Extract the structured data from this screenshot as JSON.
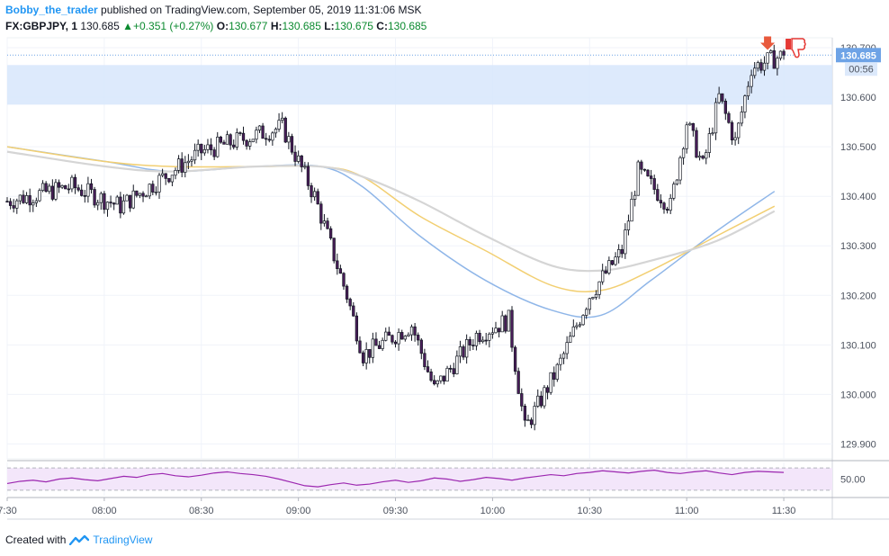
{
  "header": {
    "author": "Bobby_the_trader",
    "published_text": " published on TradingView.com, September 05, 2019 11:31:06 MSK",
    "symbol": "FX:GBPJPY, 1",
    "last_price": "130.685",
    "change": "+0.351 (+0.27%)",
    "open_label": "O:",
    "open": "130.677",
    "high_label": "H:",
    "high": "130.685",
    "low_label": "L:",
    "low": "130.675",
    "close_label": "C:",
    "close": "130.685"
  },
  "footer": {
    "created_with": "Created with",
    "brand": "TradingView"
  },
  "price_axis": {
    "last_price_label": "130.685",
    "countdown_label": "00:56",
    "top_partial_label": "130.700"
  },
  "colors": {
    "candle_body": "#4a1d5a",
    "ma_fast": "#8fb6e8",
    "ma_mid": "#f2cf72",
    "ma_slow": "#d5d5d5",
    "zone_fill": "#d7e6fb",
    "rsi_line": "#9c27b0",
    "rsi_band": "#f3e6fa",
    "marker_arrow": "#e8593c",
    "marker_thumb": "#e53935",
    "last_price_badge": "#6ea3e6",
    "brand_blue": "#2196f3"
  },
  "icons": {
    "sell_marker": "down-arrow-icon",
    "thumbs_down": "thumbs-down-icon",
    "brand_logo": "tradingview-logo-icon"
  },
  "chart_data": [
    {
      "type": "candlestick",
      "title": "",
      "x_labels": [
        "7:30",
        "08:00",
        "08:30",
        "09:00",
        "09:30",
        "10:00",
        "10:30",
        "11:00",
        "11:30"
      ],
      "x_range": [
        "07:30",
        "11:45"
      ],
      "y_ticks": [
        "129.900",
        "130.000",
        "130.100",
        "130.200",
        "130.300",
        "130.400",
        "130.500",
        "130.600",
        "130.700"
      ],
      "ylim": [
        129.87,
        130.72
      ],
      "zone": {
        "from": 130.585,
        "to": 130.665
      },
      "last_price": 130.685,
      "key_points": [
        {
          "t": "07:30",
          "price": 130.39
        },
        {
          "t": "07:50",
          "price": 130.42
        },
        {
          "t": "08:05",
          "price": 130.38
        },
        {
          "t": "08:30",
          "price": 130.49
        },
        {
          "t": "08:55",
          "price": 130.54
        },
        {
          "t": "09:05",
          "price": 130.4
        },
        {
          "t": "09:15",
          "price": 130.2
        },
        {
          "t": "09:20",
          "price": 130.08
        },
        {
          "t": "09:35",
          "price": 130.14
        },
        {
          "t": "09:42",
          "price": 130.01
        },
        {
          "t": "09:55",
          "price": 130.12
        },
        {
          "t": "10:05",
          "price": 130.15
        },
        {
          "t": "10:10",
          "price": 129.93
        },
        {
          "t": "10:20",
          "price": 130.05
        },
        {
          "t": "10:30",
          "price": 130.2
        },
        {
          "t": "10:40",
          "price": 130.29
        },
        {
          "t": "10:45",
          "price": 130.45
        },
        {
          "t": "10:55",
          "price": 130.38
        },
        {
          "t": "11:00",
          "price": 130.55
        },
        {
          "t": "11:05",
          "price": 130.46
        },
        {
          "t": "11:10",
          "price": 130.6
        },
        {
          "t": "11:15",
          "price": 130.51
        },
        {
          "t": "11:20",
          "price": 130.66
        },
        {
          "t": "11:30",
          "price": 130.685
        }
      ],
      "moving_averages": [
        {
          "color_key": "ma_fast",
          "points": [
            [
              0,
              130.5
            ],
            [
              0.12,
              130.47
            ],
            [
              0.2,
              130.45
            ],
            [
              0.3,
              130.46
            ],
            [
              0.38,
              130.46
            ],
            [
              0.43,
              130.42
            ],
            [
              0.5,
              130.32
            ],
            [
              0.58,
              130.23
            ],
            [
              0.66,
              130.17
            ],
            [
              0.72,
              130.16
            ],
            [
              0.78,
              130.23
            ],
            [
              0.86,
              130.33
            ],
            [
              0.93,
              130.41
            ]
          ]
        },
        {
          "color_key": "ma_mid",
          "points": [
            [
              0,
              130.5
            ],
            [
              0.12,
              130.47
            ],
            [
              0.2,
              130.46
            ],
            [
              0.3,
              130.46
            ],
            [
              0.38,
              130.46
            ],
            [
              0.43,
              130.44
            ],
            [
              0.5,
              130.36
            ],
            [
              0.58,
              130.29
            ],
            [
              0.66,
              130.22
            ],
            [
              0.72,
              130.21
            ],
            [
              0.78,
              130.25
            ],
            [
              0.86,
              130.32
            ],
            [
              0.93,
              130.38
            ]
          ]
        },
        {
          "color_key": "ma_slow",
          "points": [
            [
              0,
              130.49
            ],
            [
              0.12,
              130.46
            ],
            [
              0.2,
              130.45
            ],
            [
              0.3,
              130.46
            ],
            [
              0.38,
              130.46
            ],
            [
              0.43,
              130.44
            ],
            [
              0.5,
              130.39
            ],
            [
              0.58,
              130.32
            ],
            [
              0.66,
              130.26
            ],
            [
              0.72,
              130.25
            ],
            [
              0.78,
              130.27
            ],
            [
              0.86,
              130.31
            ],
            [
              0.93,
              130.37
            ]
          ]
        }
      ]
    },
    {
      "type": "line",
      "title": "",
      "y_ticks": [
        "50.00"
      ],
      "ylim": [
        20,
        80
      ],
      "bands": [
        30,
        70
      ],
      "values": [
        42,
        46,
        48,
        45,
        50,
        52,
        49,
        47,
        51,
        55,
        53,
        58,
        60,
        56,
        54,
        57,
        61,
        63,
        60,
        58,
        55,
        50,
        44,
        38,
        36,
        40,
        43,
        39,
        41,
        45,
        48,
        44,
        47,
        52,
        50,
        46,
        49,
        53,
        51,
        48,
        52,
        55,
        58,
        56,
        60,
        62,
        65,
        63,
        61,
        64,
        66,
        62,
        60,
        63,
        65,
        61,
        58,
        62,
        64,
        63,
        62
      ]
    }
  ]
}
